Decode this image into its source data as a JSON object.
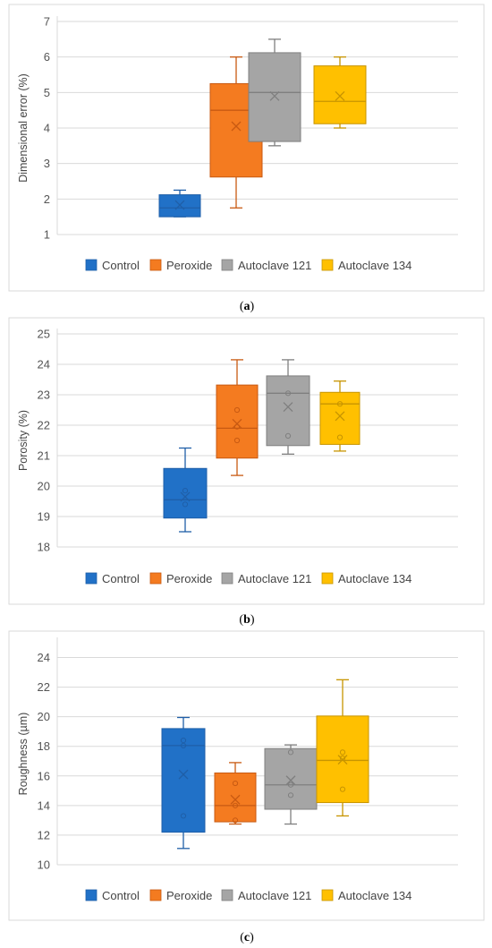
{
  "colors": {
    "Control": "#2171c7",
    "Peroxide": "#f47b20",
    "Autoclave 121": "#a5a5a5",
    "Autoclave 134": "#ffc000",
    "Control_edge": "#1f5fa8",
    "Peroxide_edge": "#c85a12",
    "Autoclave 121_edge": "#7f7f7f",
    "Autoclave 134_edge": "#c79400"
  },
  "legend_placement": "bottom",
  "chart_data": [
    {
      "type": "box",
      "panel_letter": "a",
      "ylabel": "Dimensional error (%)",
      "ylim": [
        1,
        7
      ],
      "yticks": [
        1,
        2,
        3,
        4,
        5,
        6,
        7
      ],
      "grid": true,
      "legend": [
        "Control",
        "Peroxide",
        "Autoclave 121",
        "Autoclave 134"
      ],
      "series": [
        {
          "name": "Control",
          "min": 1.5,
          "q1": 1.5,
          "median": 1.75,
          "q3": 2.12,
          "max": 2.25,
          "mean": 1.83,
          "points": []
        },
        {
          "name": "Peroxide",
          "min": 1.75,
          "q1": 2.62,
          "median": 4.5,
          "q3": 5.25,
          "max": 6.0,
          "mean": 4.05,
          "points": []
        },
        {
          "name": "Autoclave 121",
          "min": 3.5,
          "q1": 3.62,
          "median": 5.0,
          "q3": 6.12,
          "max": 6.5,
          "mean": 4.9,
          "points": []
        },
        {
          "name": "Autoclave 134",
          "min": 4.0,
          "q1": 4.12,
          "median": 4.75,
          "q3": 5.75,
          "max": 6.0,
          "mean": 4.9,
          "points": []
        }
      ]
    },
    {
      "type": "box",
      "panel_letter": "b",
      "ylabel": "Porosity (%)",
      "ylim": [
        18,
        25
      ],
      "yticks": [
        18,
        19,
        20,
        21,
        22,
        23,
        24,
        25
      ],
      "grid": true,
      "legend": [
        "Control",
        "Peroxide",
        "Autoclave 121",
        "Autoclave 134"
      ],
      "series": [
        {
          "name": "Control",
          "min": 18.5,
          "q1": 18.95,
          "median": 19.55,
          "q3": 20.58,
          "max": 21.25,
          "mean": 19.65,
          "points": [
            19.4,
            19.85
          ]
        },
        {
          "name": "Peroxide",
          "min": 20.35,
          "q1": 20.92,
          "median": 21.9,
          "q3": 23.32,
          "max": 24.15,
          "mean": 22.05,
          "points": [
            21.5,
            21.95,
            22.5
          ]
        },
        {
          "name": "Autoclave 121",
          "min": 21.05,
          "q1": 21.33,
          "median": 23.05,
          "q3": 23.62,
          "max": 24.15,
          "mean": 22.6,
          "points": [
            21.65,
            23.05
          ]
        },
        {
          "name": "Autoclave 134",
          "min": 21.15,
          "q1": 21.37,
          "median": 22.7,
          "q3": 23.08,
          "max": 23.45,
          "mean": 22.3,
          "points": [
            21.6,
            22.7
          ]
        }
      ]
    },
    {
      "type": "box",
      "panel_letter": "c",
      "ylabel": "Roughness (µm)",
      "ylim": [
        10,
        25
      ],
      "yticks": [
        10,
        12,
        14,
        16,
        18,
        20,
        22,
        24
      ],
      "grid": true,
      "legend": [
        "Control",
        "Peroxide",
        "Autoclave 121",
        "Autoclave 134"
      ],
      "series": [
        {
          "name": "Control",
          "min": 11.1,
          "q1": 12.2,
          "median": 18.05,
          "q3": 19.2,
          "max": 19.95,
          "mean": 16.1,
          "points": [
            13.3,
            18.05,
            18.4
          ]
        },
        {
          "name": "Peroxide",
          "min": 12.75,
          "q1": 12.9,
          "median": 14.0,
          "q3": 16.2,
          "max": 16.9,
          "mean": 14.4,
          "points": [
            13.0,
            14.0,
            15.5
          ]
        },
        {
          "name": "Autoclave 121",
          "min": 12.75,
          "q1": 13.75,
          "median": 15.4,
          "q3": 17.85,
          "max": 18.1,
          "mean": 15.7,
          "points": [
            14.7,
            15.4,
            17.6
          ]
        },
        {
          "name": "Autoclave 134",
          "min": 13.3,
          "q1": 14.2,
          "median": 17.05,
          "q3": 20.05,
          "max": 22.5,
          "mean": 17.1,
          "points": [
            15.1,
            17.2,
            17.6
          ]
        }
      ]
    }
  ]
}
